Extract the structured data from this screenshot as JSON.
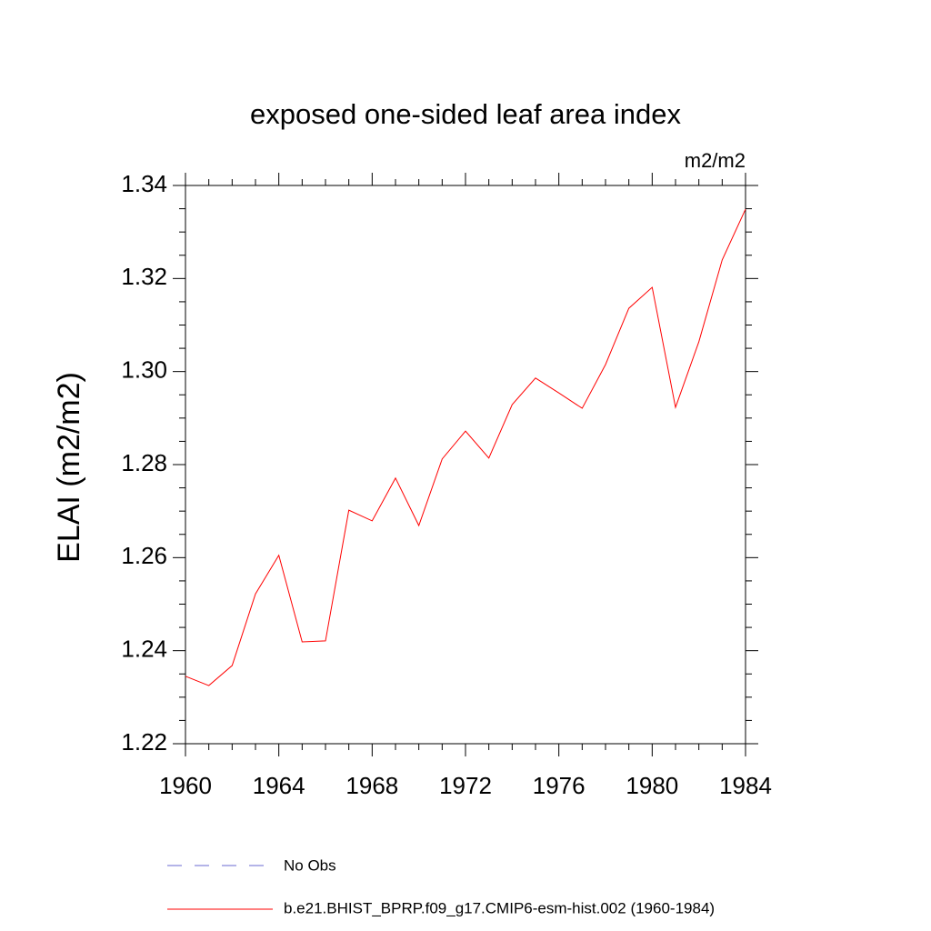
{
  "chart_data": {
    "type": "line",
    "title": "exposed one-sided leaf area index",
    "units": "m2/m2",
    "ylabel": "ELAI  (m2/m2)",
    "x": [
      1960,
      1961,
      1962,
      1963,
      1964,
      1965,
      1966,
      1967,
      1968,
      1969,
      1970,
      1971,
      1972,
      1973,
      1974,
      1975,
      1976,
      1977,
      1978,
      1979,
      1980,
      1981,
      1982,
      1983,
      1984
    ],
    "series": [
      {
        "name": "b.e21.BHIST_BPRP.f09_g17.CMIP6-esm-hist.002 (1960-1984)",
        "color": "#ff0000",
        "values": [
          1.2345,
          1.2325,
          1.2368,
          1.2522,
          1.2605,
          1.2419,
          1.2421,
          1.2702,
          1.2679,
          1.2771,
          1.2669,
          1.2812,
          1.2872,
          1.2814,
          1.2929,
          1.2986,
          1.2954,
          1.2921,
          1.3015,
          1.3136,
          1.3181,
          1.2923,
          1.3064,
          1.324,
          1.3349
        ]
      }
    ],
    "obs_legend": {
      "name": "No Obs",
      "color": "#6a6ad0"
    },
    "xlim": [
      1960,
      1984
    ],
    "xticks": [
      1960,
      1964,
      1968,
      1972,
      1976,
      1980,
      1984
    ],
    "ylim": [
      1.22,
      1.34
    ],
    "yticks": [
      1.22,
      1.24,
      1.26,
      1.28,
      {
        "value": 1.3,
        "label": "1.30"
      },
      1.32,
      1.34
    ]
  }
}
